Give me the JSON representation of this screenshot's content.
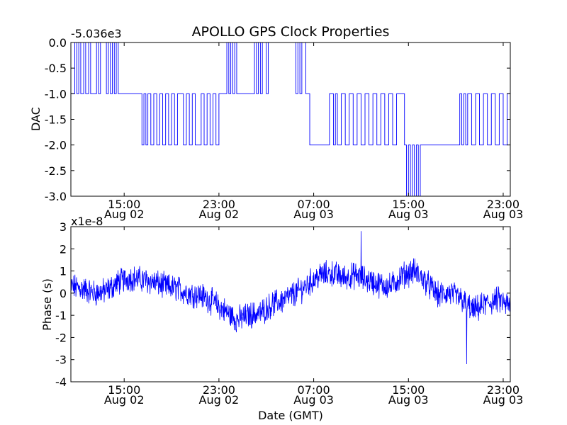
{
  "title": "APOLLO GPS Clock Properties",
  "colors": {
    "line": "#0000ff",
    "frame": "#000000",
    "background": "#ffffff"
  },
  "chart_data": [
    {
      "type": "line",
      "name": "dac",
      "ylabel": "DAC",
      "offset_text": "-5.036e3",
      "ylim": [
        -3.0,
        0.0
      ],
      "yticks": [
        0.0,
        -0.5,
        -1.0,
        -1.5,
        -2.0,
        -2.5,
        -3.0
      ],
      "ytick_labels": [
        "0.0",
        "-0.5",
        "-1.0",
        "-1.5",
        "-2.0",
        "-2.5",
        "-3.0"
      ],
      "xlim": [
        "2007-08-02 10:30",
        "2007-08-03 23:36"
      ],
      "xticks": [
        "2007-08-02 15:00",
        "2007-08-02 23:00",
        "2007-08-03 07:00",
        "2007-08-03 15:00",
        "2007-08-03 23:00"
      ],
      "xtick_labels": [
        [
          "15:00",
          "Aug 02"
        ],
        [
          "23:00",
          "Aug 02"
        ],
        [
          "07:00",
          "Aug 03"
        ],
        [
          "15:00",
          "Aug 03"
        ],
        [
          "23:00",
          "Aug 03"
        ]
      ],
      "grid": false,
      "series": [
        {
          "style": "step",
          "x": [
            "2007-08-02 10:30",
            "2007-08-02 10:50",
            "2007-08-02 11:00",
            "2007-08-02 11:10",
            "2007-08-02 11:20",
            "2007-08-02 11:35",
            "2007-08-02 11:45",
            "2007-08-02 12:00",
            "2007-08-02 12:10",
            "2007-08-02 12:30",
            "2007-08-02 12:40",
            "2007-08-02 12:50",
            "2007-08-02 13:00",
            "2007-08-02 13:30",
            "2007-08-02 13:40",
            "2007-08-02 13:50",
            "2007-08-02 14:00",
            "2007-08-02 14:10",
            "2007-08-02 14:20",
            "2007-08-02 14:30",
            "2007-08-02 14:40",
            "2007-08-02 15:00",
            "2007-08-02 16:30",
            "2007-08-02 16:40",
            "2007-08-02 16:50",
            "2007-08-02 17:00",
            "2007-08-02 17:15",
            "2007-08-02 17:30",
            "2007-08-02 17:45",
            "2007-08-02 18:00",
            "2007-08-02 18:15",
            "2007-08-02 18:30",
            "2007-08-02 18:45",
            "2007-08-02 19:00",
            "2007-08-02 19:15",
            "2007-08-02 19:30",
            "2007-08-02 20:00",
            "2007-08-02 20:15",
            "2007-08-02 20:30",
            "2007-08-02 20:45",
            "2007-08-02 21:00",
            "2007-08-02 21:30",
            "2007-08-02 21:45",
            "2007-08-02 22:00",
            "2007-08-02 22:15",
            "2007-08-02 22:30",
            "2007-08-02 22:45",
            "2007-08-02 23:00",
            "2007-08-02 23:20",
            "2007-08-02 23:30",
            "2007-08-02 23:40",
            "2007-08-02 23:50",
            "2007-08-03 00:00",
            "2007-08-03 00:10",
            "2007-08-03 00:20",
            "2007-08-03 00:30",
            "2007-08-03 02:00",
            "2007-08-03 02:10",
            "2007-08-03 02:20",
            "2007-08-03 02:30",
            "2007-08-03 02:40",
            "2007-08-03 03:00",
            "2007-08-03 03:10",
            "2007-08-03 03:30",
            "2007-08-03 05:30",
            "2007-08-03 05:40",
            "2007-08-03 05:50",
            "2007-08-03 06:00",
            "2007-08-03 06:20",
            "2007-08-03 06:30",
            "2007-08-03 06:40",
            "2007-08-03 08:20",
            "2007-08-03 08:40",
            "2007-08-03 08:50",
            "2007-08-03 09:00",
            "2007-08-03 09:20",
            "2007-08-03 09:40",
            "2007-08-03 10:00",
            "2007-08-03 10:20",
            "2007-08-03 10:40",
            "2007-08-03 11:00",
            "2007-08-03 11:20",
            "2007-08-03 11:40",
            "2007-08-03 12:00",
            "2007-08-03 12:20",
            "2007-08-03 12:40",
            "2007-08-03 13:00",
            "2007-08-03 13:20",
            "2007-08-03 13:40",
            "2007-08-03 14:00",
            "2007-08-03 14:40",
            "2007-08-03 14:50",
            "2007-08-03 15:00",
            "2007-08-03 15:10",
            "2007-08-03 15:20",
            "2007-08-03 15:30",
            "2007-08-03 15:40",
            "2007-08-03 15:50",
            "2007-08-03 16:00",
            "2007-08-03 16:30",
            "2007-08-03 19:20",
            "2007-08-03 19:30",
            "2007-08-03 19:40",
            "2007-08-03 19:50",
            "2007-08-03 20:00",
            "2007-08-03 20:20",
            "2007-08-03 20:40",
            "2007-08-03 21:00",
            "2007-08-03 21:20",
            "2007-08-03 21:40",
            "2007-08-03 22:00",
            "2007-08-03 22:20",
            "2007-08-03 22:40",
            "2007-08-03 23:00",
            "2007-08-03 23:20",
            "2007-08-03 23:36"
          ],
          "y": [
            -1.0,
            0.0,
            -1.0,
            0.0,
            -1.0,
            0.0,
            -1.0,
            0.0,
            -1.0,
            -1.0,
            0.0,
            -1.0,
            0.0,
            -1.0,
            0.0,
            -1.0,
            0.0,
            -1.0,
            0.0,
            -1.0,
            -1.0,
            -1.0,
            -2.0,
            -1.0,
            -2.0,
            -1.0,
            -2.0,
            -1.0,
            -2.0,
            -1.0,
            -2.0,
            -1.0,
            -2.0,
            -1.0,
            -2.0,
            -1.0,
            -2.0,
            -1.0,
            -2.0,
            -1.0,
            -2.0,
            -1.0,
            -2.0,
            -1.0,
            -2.0,
            -1.0,
            -2.0,
            -1.0,
            -1.0,
            -1.0,
            0.0,
            -1.0,
            0.0,
            -1.0,
            0.0,
            -1.0,
            0.0,
            -1.0,
            0.0,
            -1.0,
            0.0,
            -1.0,
            0.0,
            0.0,
            -1.0,
            0.0,
            -1.0,
            0.0,
            -1.0,
            -1.0,
            -2.0,
            -1.0,
            -2.0,
            -1.0,
            -2.0,
            -1.0,
            -2.0,
            -1.0,
            -2.0,
            -1.0,
            -2.0,
            -1.0,
            -2.0,
            -1.0,
            -2.0,
            -1.0,
            -2.0,
            -1.0,
            -2.0,
            -1.0,
            -2.0,
            -3.0,
            -2.0,
            -3.0,
            -2.0,
            -3.0,
            -2.0,
            -3.0,
            -2.0,
            -2.0,
            -1.0,
            -2.0,
            -1.0,
            -2.0,
            -1.0,
            -2.0,
            -1.0,
            -2.0,
            -1.0,
            -2.0,
            -1.0,
            -2.0,
            -1.0,
            -2.0,
            -1.0,
            -1.0
          ]
        }
      ]
    },
    {
      "type": "line",
      "name": "phase",
      "ylabel": "Phase (s)",
      "xlabel": "Date (GMT)",
      "offset_text": "x1e-8",
      "ylim": [
        -4,
        3
      ],
      "yticks": [
        3,
        2,
        1,
        0,
        -1,
        -2,
        -3,
        -4
      ],
      "ytick_labels": [
        "3",
        "2",
        "1",
        "0",
        "-1",
        "-2",
        "-3",
        "-4"
      ],
      "xlim": [
        "2007-08-02 10:30",
        "2007-08-03 23:36"
      ],
      "xticks": [
        "2007-08-02 15:00",
        "2007-08-02 23:00",
        "2007-08-03 07:00",
        "2007-08-03 15:00",
        "2007-08-03 23:00"
      ],
      "xtick_labels": [
        [
          "15:00",
          "Aug 02"
        ],
        [
          "23:00",
          "Aug 02"
        ],
        [
          "07:00",
          "Aug 03"
        ],
        [
          "15:00",
          "Aug 03"
        ],
        [
          "23:00",
          "Aug 03"
        ]
      ],
      "grid": false,
      "series": [
        {
          "style": "noisy",
          "x": [
            "2007-08-02 10:30",
            "2007-08-02 11:30",
            "2007-08-02 12:30",
            "2007-08-02 13:30",
            "2007-08-02 14:30",
            "2007-08-02 15:30",
            "2007-08-02 16:30",
            "2007-08-02 17:30",
            "2007-08-02 18:30",
            "2007-08-02 19:30",
            "2007-08-02 20:30",
            "2007-08-02 21:30",
            "2007-08-02 22:30",
            "2007-08-02 23:30",
            "2007-08-03 00:30",
            "2007-08-03 01:30",
            "2007-08-03 02:30",
            "2007-08-03 03:30",
            "2007-08-03 04:30",
            "2007-08-03 05:30",
            "2007-08-03 06:30",
            "2007-08-03 07:30",
            "2007-08-03 08:30",
            "2007-08-03 09:30",
            "2007-08-03 10:30",
            "2007-08-03 11:30",
            "2007-08-03 12:30",
            "2007-08-03 13:30",
            "2007-08-03 14:30",
            "2007-08-03 15:30",
            "2007-08-03 16:30",
            "2007-08-03 17:30",
            "2007-08-03 18:30",
            "2007-08-03 19:30",
            "2007-08-03 20:30",
            "2007-08-03 21:30",
            "2007-08-03 22:30",
            "2007-08-03 23:36"
          ],
          "y": [
            0.3,
            0.2,
            0.0,
            0.1,
            0.5,
            0.7,
            0.6,
            0.5,
            0.3,
            0.2,
            0.0,
            -0.1,
            -0.4,
            -0.8,
            -1.2,
            -1.0,
            -0.9,
            -0.5,
            -0.3,
            0.0,
            0.4,
            0.8,
            0.9,
            0.7,
            0.8,
            0.6,
            0.4,
            0.3,
            0.8,
            1.0,
            0.5,
            -0.1,
            0.0,
            -0.3,
            -0.8,
            -0.5,
            -0.3,
            -0.6
          ],
          "noise_amplitude": 0.5,
          "extremes": {
            "max": 2.8,
            "min": -3.2
          }
        }
      ]
    }
  ]
}
